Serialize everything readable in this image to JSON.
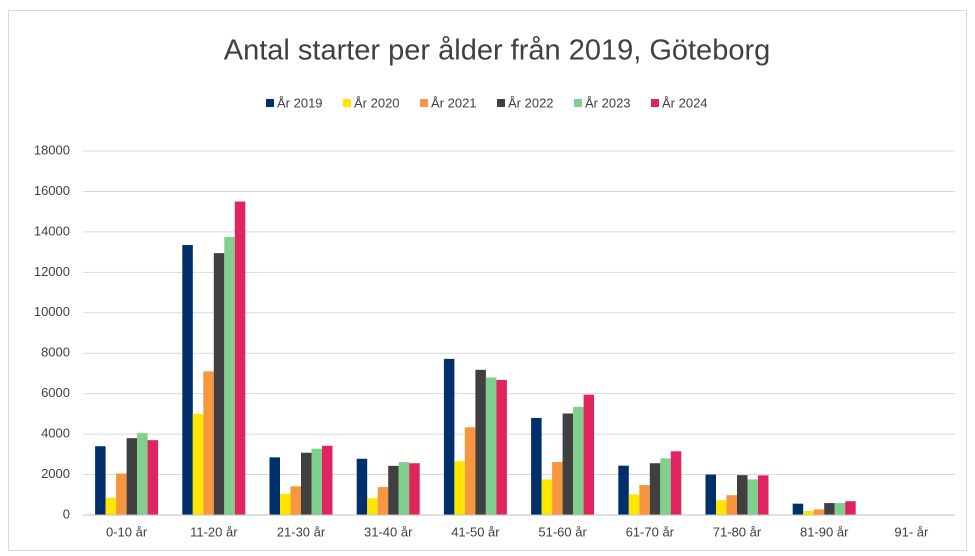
{
  "chart_data": {
    "type": "bar",
    "title": "Antal starter per ålder från 2019, Göteborg",
    "categories": [
      "0-10 år",
      "11-20 år",
      "21-30 år",
      "31-40 år",
      "41-50 år",
      "51-60 år",
      "61-70 år",
      "71-80 år",
      "81-90 år",
      "91- år"
    ],
    "series": [
      {
        "name": "År 2019",
        "color": "#002f6c",
        "values": [
          3400,
          13350,
          2850,
          2780,
          7720,
          4800,
          2440,
          2000,
          560,
          10
        ]
      },
      {
        "name": "År 2020",
        "color": "#ffe600",
        "values": [
          850,
          5000,
          1050,
          830,
          2660,
          1760,
          1020,
          730,
          200,
          5
        ]
      },
      {
        "name": "År 2021",
        "color": "#f7963f",
        "values": [
          2050,
          7100,
          1420,
          1380,
          4340,
          2620,
          1480,
          980,
          280,
          5
        ]
      },
      {
        "name": "År 2022",
        "color": "#404040",
        "values": [
          3800,
          12950,
          3080,
          2430,
          7180,
          5020,
          2560,
          1970,
          590,
          10
        ]
      },
      {
        "name": "År 2023",
        "color": "#7fcf8f",
        "values": [
          4050,
          13750,
          3280,
          2620,
          6800,
          5350,
          2800,
          1760,
          590,
          10
        ]
      },
      {
        "name": "År 2024",
        "color": "#e0245e",
        "values": [
          3700,
          15500,
          3420,
          2560,
          6680,
          5950,
          3150,
          1960,
          680,
          20
        ]
      }
    ],
    "ylim": [
      0,
      18000
    ],
    "yticks": [
      0,
      2000,
      4000,
      6000,
      8000,
      10000,
      12000,
      14000,
      16000,
      18000
    ],
    "grid": true,
    "legend": "top"
  }
}
